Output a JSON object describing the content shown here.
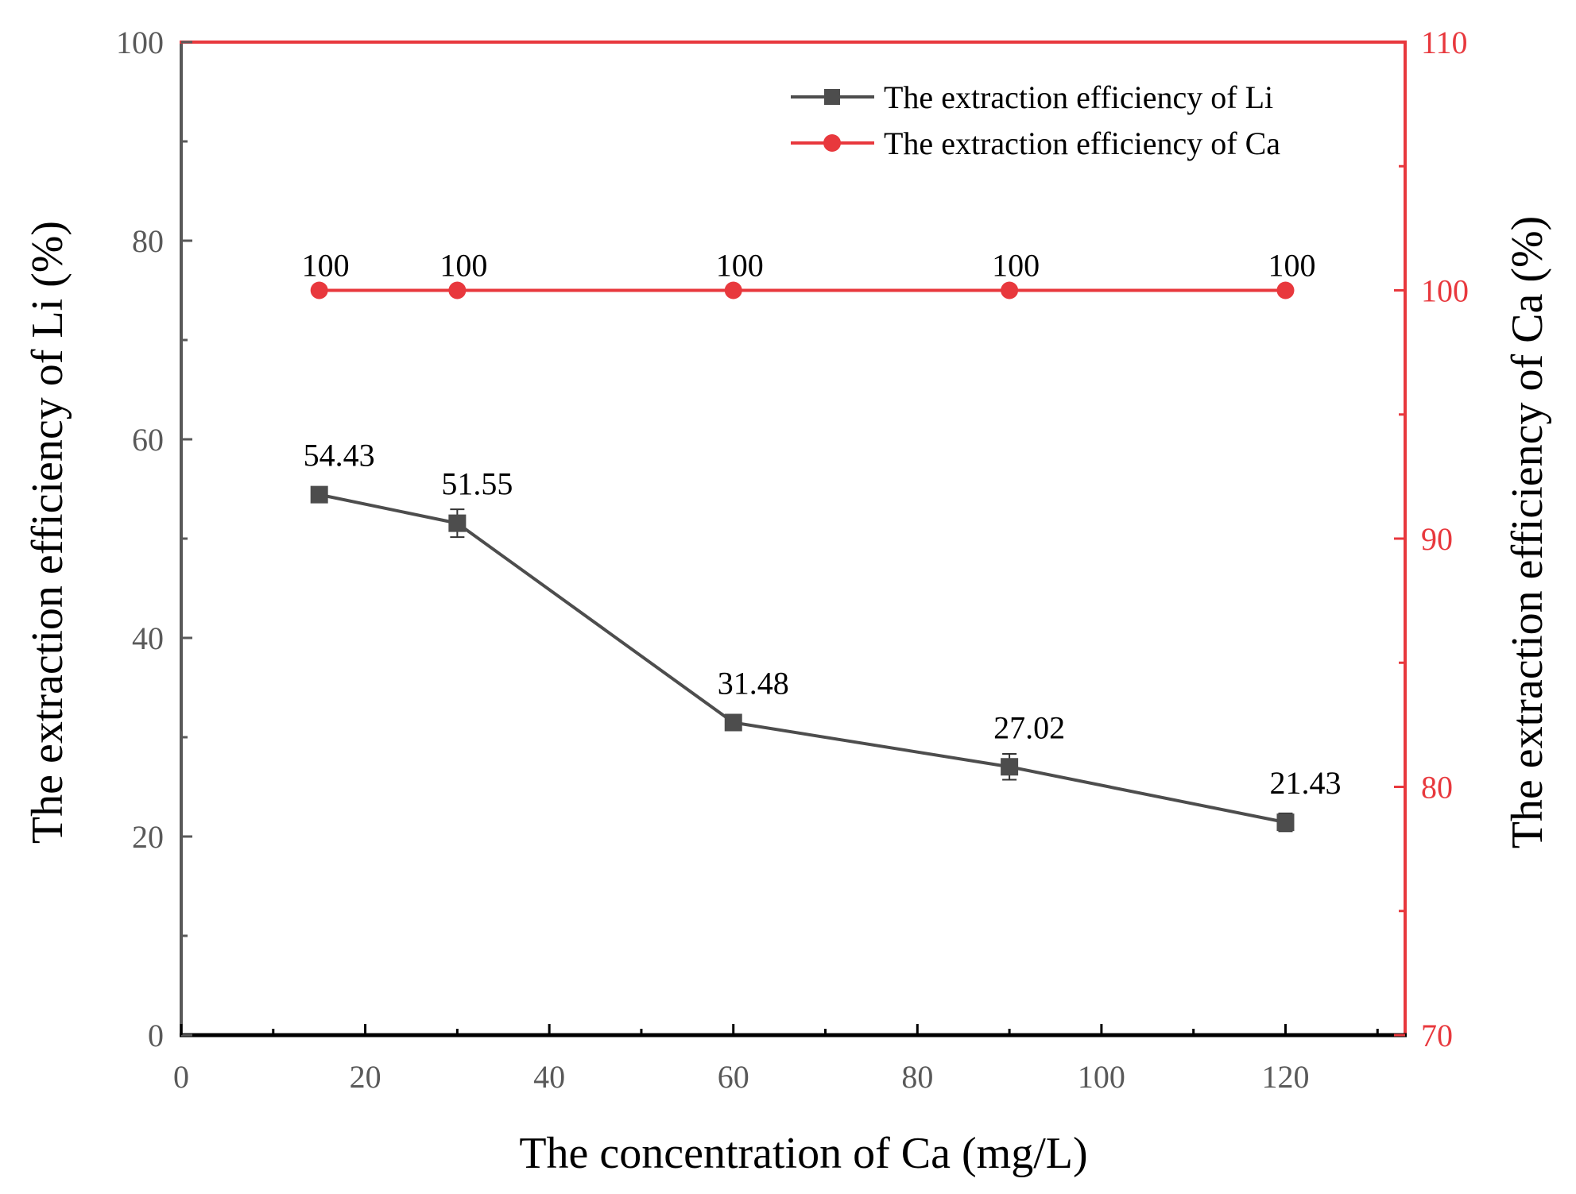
{
  "chart_data": {
    "type": "line",
    "x": [
      15,
      30,
      60,
      90,
      120
    ],
    "xlabel": "The concentration of Ca (mg/L)",
    "ylabel": "The extraction efficiency of Li (%)",
    "y2label": "The extraction efficiency of Ca (%)",
    "xlim": [
      0,
      133
    ],
    "ylim": [
      0,
      100
    ],
    "y2lim": [
      70,
      110
    ],
    "xticks": [
      "0",
      "20",
      "40",
      "60",
      "80",
      "100",
      "120"
    ],
    "yticks": [
      "0",
      "20",
      "40",
      "60",
      "80",
      "100"
    ],
    "y2ticks": [
      "70",
      "80",
      "90",
      "100",
      "110"
    ],
    "legend_position": "top-right",
    "grid": false,
    "series": [
      {
        "name": "The extraction efficiency of Li",
        "axis": "left",
        "marker": "square",
        "color": "#4d4d4d",
        "values": [
          54.43,
          51.55,
          31.48,
          27.02,
          21.43
        ],
        "errors": [
          0.4,
          1.4,
          0.4,
          1.3,
          0.9
        ],
        "labels": [
          "54.43",
          "51.55",
          "31.48",
          "27.02",
          "21.43"
        ]
      },
      {
        "name": "The extraction efficiency of Ca",
        "axis": "right",
        "marker": "circle",
        "color": "#e8383d",
        "values": [
          100,
          100,
          100,
          100,
          100
        ],
        "labels": [
          "100",
          "100",
          "100",
          "100",
          "100"
        ]
      }
    ]
  },
  "colors": {
    "left_axis": "#595959",
    "right_axis": "#e8383d",
    "bottom_axis": "#000000"
  }
}
